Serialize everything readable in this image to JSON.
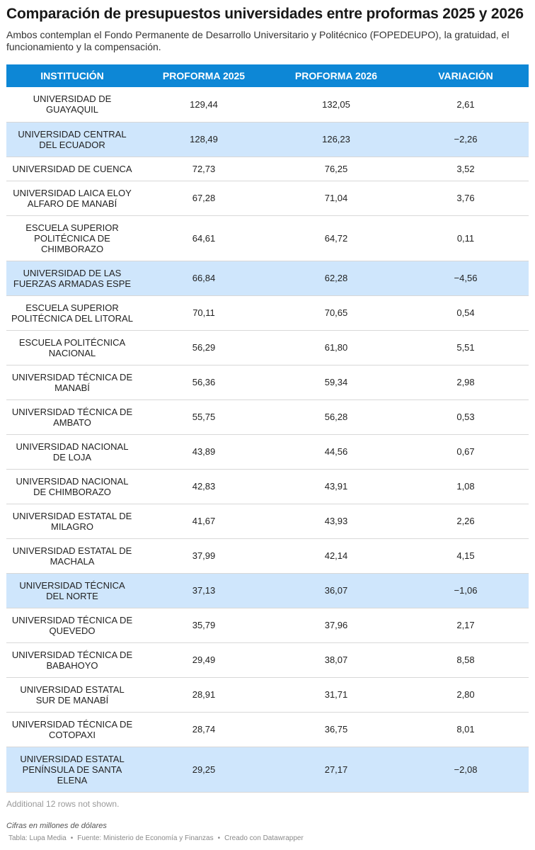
{
  "header": {
    "title": "Comparación de presupuestos universidades entre proformas 2025 y 2026",
    "subtitle": "Ambos contemplan el Fondo Permanente de Desarrollo Universitario y Politécnico (FOPEDEUPO), la gratuidad, el funcionamiento y la compensación."
  },
  "chart_data": {
    "type": "table",
    "columns": [
      "INSTITUCIÓN",
      "PROFORMA 2025",
      "PROFORMA 2026",
      "VARIACIÓN"
    ],
    "rows": [
      {
        "institucion": "UNIVERSIDAD DE GUAYAQUIL",
        "p2025": "129,44",
        "p2026": "132,05",
        "variacion": "2,61",
        "negative": false
      },
      {
        "institucion": "UNIVERSIDAD CENTRAL DEL ECUADOR",
        "p2025": "128,49",
        "p2026": "126,23",
        "variacion": "−2,26",
        "negative": true
      },
      {
        "institucion": "UNIVERSIDAD DE CUENCA",
        "p2025": "72,73",
        "p2026": "76,25",
        "variacion": "3,52",
        "negative": false
      },
      {
        "institucion": "UNIVERSIDAD LAICA ELOY ALFARO DE MANABÍ",
        "p2025": "67,28",
        "p2026": "71,04",
        "variacion": "3,76",
        "negative": false
      },
      {
        "institucion": "ESCUELA SUPERIOR POLITÉCNICA DE CHIMBORAZO",
        "p2025": "64,61",
        "p2026": "64,72",
        "variacion": "0,11",
        "negative": false
      },
      {
        "institucion": "UNIVERSIDAD DE LAS FUERZAS ARMADAS ESPE",
        "p2025": "66,84",
        "p2026": "62,28",
        "variacion": "−4,56",
        "negative": true
      },
      {
        "institucion": "ESCUELA SUPERIOR POLITÉCNICA DEL LITORAL",
        "p2025": "70,11",
        "p2026": "70,65",
        "variacion": "0,54",
        "negative": false
      },
      {
        "institucion": "ESCUELA POLITÉCNICA NACIONAL",
        "p2025": "56,29",
        "p2026": "61,80",
        "variacion": "5,51",
        "negative": false
      },
      {
        "institucion": "UNIVERSIDAD TÉCNICA DE MANABÍ",
        "p2025": "56,36",
        "p2026": "59,34",
        "variacion": "2,98",
        "negative": false
      },
      {
        "institucion": "UNIVERSIDAD TÉCNICA DE AMBATO",
        "p2025": "55,75",
        "p2026": "56,28",
        "variacion": "0,53",
        "negative": false
      },
      {
        "institucion": "UNIVERSIDAD NACIONAL DE LOJA",
        "p2025": "43,89",
        "p2026": "44,56",
        "variacion": "0,67",
        "negative": false
      },
      {
        "institucion": "UNIVERSIDAD NACIONAL DE CHIMBORAZO",
        "p2025": "42,83",
        "p2026": "43,91",
        "variacion": "1,08",
        "negative": false
      },
      {
        "institucion": "UNIVERSIDAD ESTATAL DE MILAGRO",
        "p2025": "41,67",
        "p2026": "43,93",
        "variacion": "2,26",
        "negative": false
      },
      {
        "institucion": "UNIVERSIDAD ESTATAL DE MACHALA",
        "p2025": "37,99",
        "p2026": "42,14",
        "variacion": "4,15",
        "negative": false
      },
      {
        "institucion": "UNIVERSIDAD TÉCNICA DEL NORTE",
        "p2025": "37,13",
        "p2026": "36,07",
        "variacion": "−1,06",
        "negative": true
      },
      {
        "institucion": "UNIVERSIDAD TÉCNICA DE QUEVEDO",
        "p2025": "35,79",
        "p2026": "37,96",
        "variacion": "2,17",
        "negative": false
      },
      {
        "institucion": "UNIVERSIDAD TÉCNICA DE BABAHOYO",
        "p2025": "29,49",
        "p2026": "38,07",
        "variacion": "8,58",
        "negative": false
      },
      {
        "institucion": "UNIVERSIDAD ESTATAL SUR DE MANABÍ",
        "p2025": "28,91",
        "p2026": "31,71",
        "variacion": "2,80",
        "negative": false
      },
      {
        "institucion": "UNIVERSIDAD TÉCNICA DE COTOPAXI",
        "p2025": "28,74",
        "p2026": "36,75",
        "variacion": "8,01",
        "negative": false
      },
      {
        "institucion": "UNIVERSIDAD ESTATAL PENÍNSULA DE SANTA ELENA",
        "p2025": "29,25",
        "p2026": "27,17",
        "variacion": "−2,08",
        "negative": true
      }
    ]
  },
  "footer": {
    "more_rows": "Additional 12 rows not shown.",
    "units": "Cifras en millones de dólares",
    "credits": [
      "Tabla: Lupa Media",
      "Fuente: Ministerio de Economía y Finanzas",
      "Creado con Datawrapper"
    ],
    "separator": "•"
  },
  "colors": {
    "header_bg": "#0d87d6",
    "negative_row_bg": "#cfe6fc"
  }
}
